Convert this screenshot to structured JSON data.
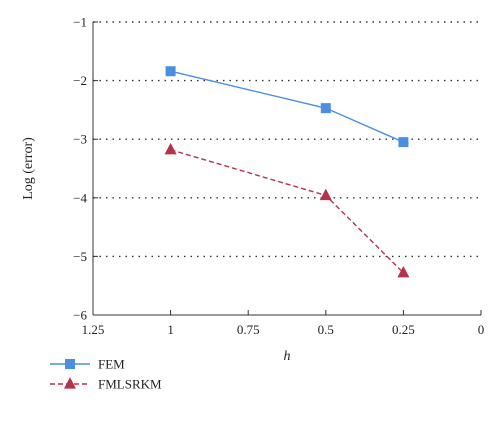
{
  "chart_data": {
    "type": "line",
    "title": "",
    "xlabel": "h",
    "ylabel": "Log (error)",
    "x_reversed": true,
    "xlim": [
      0,
      1.25
    ],
    "ylim": [
      -6,
      -1
    ],
    "x_ticks": [
      1.25,
      1,
      0.75,
      0.5,
      0.25,
      0
    ],
    "x_tick_labels": [
      "1.25",
      "1",
      "0.75",
      "0.5",
      "0.25",
      "0"
    ],
    "y_ticks": [
      -1,
      -2,
      -3,
      -4,
      -5,
      -6
    ],
    "y_tick_labels": [
      "−1",
      "−2",
      "−3",
      "−4",
      "−5",
      "−6"
    ],
    "grid": "horizontal-dotted",
    "legend_position": "bottom-left",
    "series": [
      {
        "name": "FEM",
        "color": "#4a8fe0",
        "line_style": "solid",
        "marker": "square",
        "x": [
          1,
          0.5,
          0.25
        ],
        "y": [
          -1.84,
          -2.47,
          -3.05
        ]
      },
      {
        "name": "FMLSRKM",
        "color": "#b5334a",
        "line_style": "dashed",
        "marker": "triangle",
        "x": [
          1,
          0.5,
          0.25
        ],
        "y": [
          -3.18,
          -3.96,
          -5.28
        ]
      }
    ]
  }
}
